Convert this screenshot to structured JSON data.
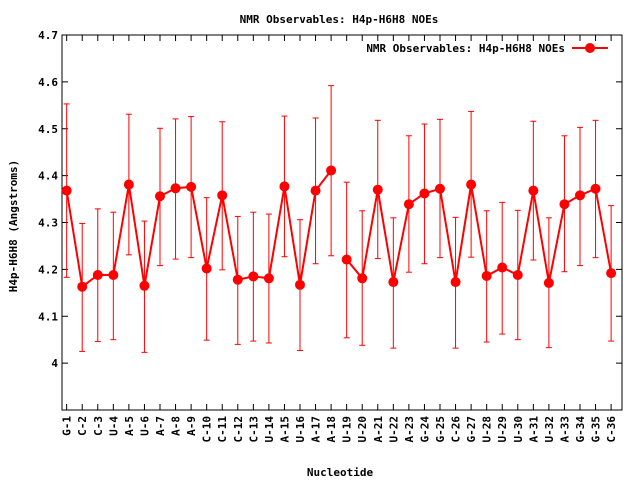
{
  "chart_data": {
    "type": "line",
    "title": "NMR Observables: H4p-H6H8 NOEs",
    "xlabel": "Nucleotide",
    "ylabel": "H4p-H6H8 (Angstroms)",
    "ylim": [
      3.9,
      4.7
    ],
    "yticks": [
      4.0,
      4.1,
      4.2,
      4.3,
      4.4,
      4.5,
      4.6,
      4.7
    ],
    "ytick_labels": [
      "4",
      "4.1",
      "4.2",
      "4.3",
      "4.4",
      "4.5",
      "4.6",
      "4.7"
    ],
    "grid": false,
    "legend_position": "top-right",
    "color": "#ff0000",
    "categories": [
      "G-1",
      "C-2",
      "C-3",
      "U-4",
      "A-5",
      "U-6",
      "A-7",
      "A-8",
      "A-9",
      "C-10",
      "C-11",
      "C-12",
      "C-13",
      "U-14",
      "A-15",
      "U-16",
      "A-17",
      "A-18",
      "U-19",
      "U-20",
      "A-21",
      "U-22",
      "A-23",
      "G-24",
      "G-25",
      "C-26",
      "G-27",
      "U-28",
      "U-29",
      "U-30",
      "A-31",
      "U-32",
      "A-33",
      "G-34",
      "G-35",
      "C-36"
    ],
    "series": [
      {
        "name": "NMR Observables: H4p-H6H8 NOEs",
        "segments": [
          [
            0,
            17
          ],
          [
            18,
            35
          ]
        ],
        "values": [
          4.368,
          4.163,
          4.188,
          4.188,
          4.381,
          4.165,
          4.356,
          4.373,
          4.376,
          4.202,
          4.358,
          4.178,
          4.185,
          4.181,
          4.377,
          4.167,
          4.368,
          4.411,
          4.221,
          4.181,
          4.37,
          4.173,
          4.339,
          4.362,
          4.372,
          4.173,
          4.381,
          4.186,
          4.204,
          4.188,
          4.368,
          4.171,
          4.339,
          4.358,
          4.372,
          4.192
        ],
        "error_low": [
          4.183,
          4.025,
          4.046,
          4.05,
          4.231,
          4.023,
          4.208,
          4.222,
          4.225,
          4.049,
          4.199,
          4.04,
          4.047,
          4.043,
          4.227,
          4.027,
          4.212,
          4.229,
          4.054,
          4.038,
          4.223,
          4.032,
          4.194,
          4.212,
          4.225,
          4.032,
          4.226,
          4.045,
          4.062,
          4.05,
          4.22,
          4.033,
          4.195,
          4.208,
          4.225,
          4.047
        ],
        "error_high": [
          4.553,
          4.298,
          4.329,
          4.322,
          4.531,
          4.303,
          4.501,
          4.521,
          4.526,
          4.353,
          4.515,
          4.313,
          4.322,
          4.318,
          4.527,
          4.306,
          4.523,
          4.592,
          4.386,
          4.325,
          4.518,
          4.31,
          4.485,
          4.51,
          4.52,
          4.311,
          4.537,
          4.325,
          4.343,
          4.326,
          4.516,
          4.31,
          4.485,
          4.503,
          4.518,
          4.336
        ]
      }
    ]
  }
}
